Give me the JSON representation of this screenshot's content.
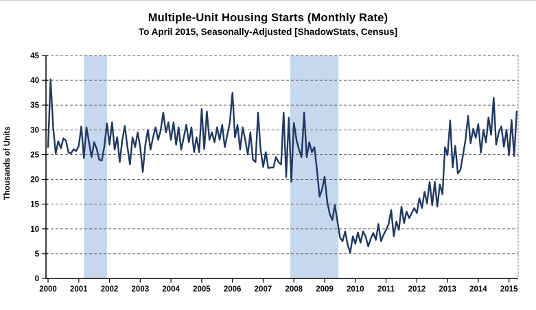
{
  "figure": {
    "title": "Multiple-Unit Housing Starts (Monthly Rate)",
    "subtitle": "To April 2015, Seasonally-Adjusted [ShadowStats, Census]"
  },
  "chart_data": {
    "type": "line",
    "title": "Multiple-Unit Housing Starts (Monthly Rate)",
    "subtitle": "To April 2015, Seasonally-Adjusted [ShadowStats, Census]",
    "ylabel": "Thousands of Units",
    "xlabel": "",
    "ylim": [
      0,
      45
    ],
    "ytick_step": 5,
    "ytick_labels": [
      "0",
      "5",
      "10",
      "15",
      "20",
      "25",
      "30",
      "35",
      "40",
      "45"
    ],
    "x_tick_years": [
      "2000",
      "2001",
      "2002",
      "2003",
      "2004",
      "2005",
      "2006",
      "2007",
      "2008",
      "2009",
      "2010",
      "2011",
      "2012",
      "2013",
      "2014",
      "2015"
    ],
    "x_start": "2000-01",
    "x_end": "2015-04",
    "grid": "horizontal-dashed",
    "legend": "none",
    "recession_bands": [
      {
        "from_year": 2001.17,
        "to_year": 2001.92
      },
      {
        "from_year": 2007.88,
        "to_year": 2009.45
      }
    ],
    "colors": {
      "line": "#1F3864",
      "band": "#C5D8EE",
      "grid": "#5a5a5a",
      "axis": "#000000",
      "right_border": "#9a9a9a",
      "text": "#000000",
      "background": "#FFFFFF"
    },
    "series": [
      {
        "name": "Multiple-unit housing starts, monthly rate (thousands of units)",
        "start_year": 2000,
        "monthly_values": [
          26.5,
          40.2,
          30.5,
          25.2,
          27.7,
          26.3,
          28.3,
          27.8,
          25.4,
          25.3,
          26.1,
          25.7,
          26.8,
          30.7,
          24.3,
          30.5,
          27.5,
          24.5,
          27.5,
          26.2,
          24.0,
          23.8,
          26.7,
          31.3,
          27.0,
          31.5,
          26.0,
          28.5,
          23.5,
          28.0,
          30.8,
          26.5,
          23.0,
          28.5,
          26.5,
          29.5,
          26.5,
          21.5,
          27.0,
          30.0,
          26.0,
          28.5,
          30.5,
          28.0,
          30.0,
          33.5,
          29.5,
          31.5,
          28.0,
          31.5,
          27.0,
          30.5,
          26.0,
          28.5,
          31.0,
          27.5,
          30.5,
          25.5,
          28.5,
          25.5,
          34.2,
          26.1,
          33.7,
          28.0,
          29.5,
          27.5,
          30.5,
          28.0,
          31.0,
          26.5,
          29.0,
          31.5,
          37.5,
          28.5,
          31.0,
          26.0,
          30.5,
          28.0,
          25.0,
          29.5,
          24.0,
          23.5,
          33.5,
          26.0,
          22.5,
          25.5,
          22.3,
          22.4,
          22.4,
          24.5,
          23.5,
          23.0,
          33.5,
          20.5,
          32.5,
          19.5,
          31.4,
          28.0,
          26.0,
          24.5,
          33.5,
          24.5,
          27.5,
          25.5,
          26.5,
          22.0,
          16.5,
          18.0,
          20.5,
          15.5,
          13.0,
          11.8,
          14.8,
          11.5,
          8.3,
          7.5,
          9.5,
          6.8,
          5.2,
          8.5,
          7.0,
          9.3,
          7.2,
          9.5,
          8.5,
          6.5,
          8.0,
          9.2,
          7.8,
          11.0,
          7.5,
          8.8,
          9.8,
          11.0,
          13.8,
          8.5,
          11.5,
          9.8,
          14.5,
          11.2,
          13.5,
          12.2,
          13.2,
          14.2,
          13.2,
          16.2,
          14.2,
          17.5,
          15.2,
          19.5,
          14.8,
          19.5,
          14.5,
          19.0,
          17.0,
          26.5,
          24.9,
          31.9,
          22.4,
          26.8,
          21.2,
          21.9,
          24.8,
          28.0,
          32.8,
          27.3,
          30.2,
          28.4,
          31.2,
          25.4,
          30.0,
          27.5,
          32.5,
          29.0,
          36.5,
          27.0,
          29.5,
          30.7,
          26.6,
          30.0,
          24.9,
          32.0,
          24.7,
          33.7
        ]
      }
    ]
  }
}
